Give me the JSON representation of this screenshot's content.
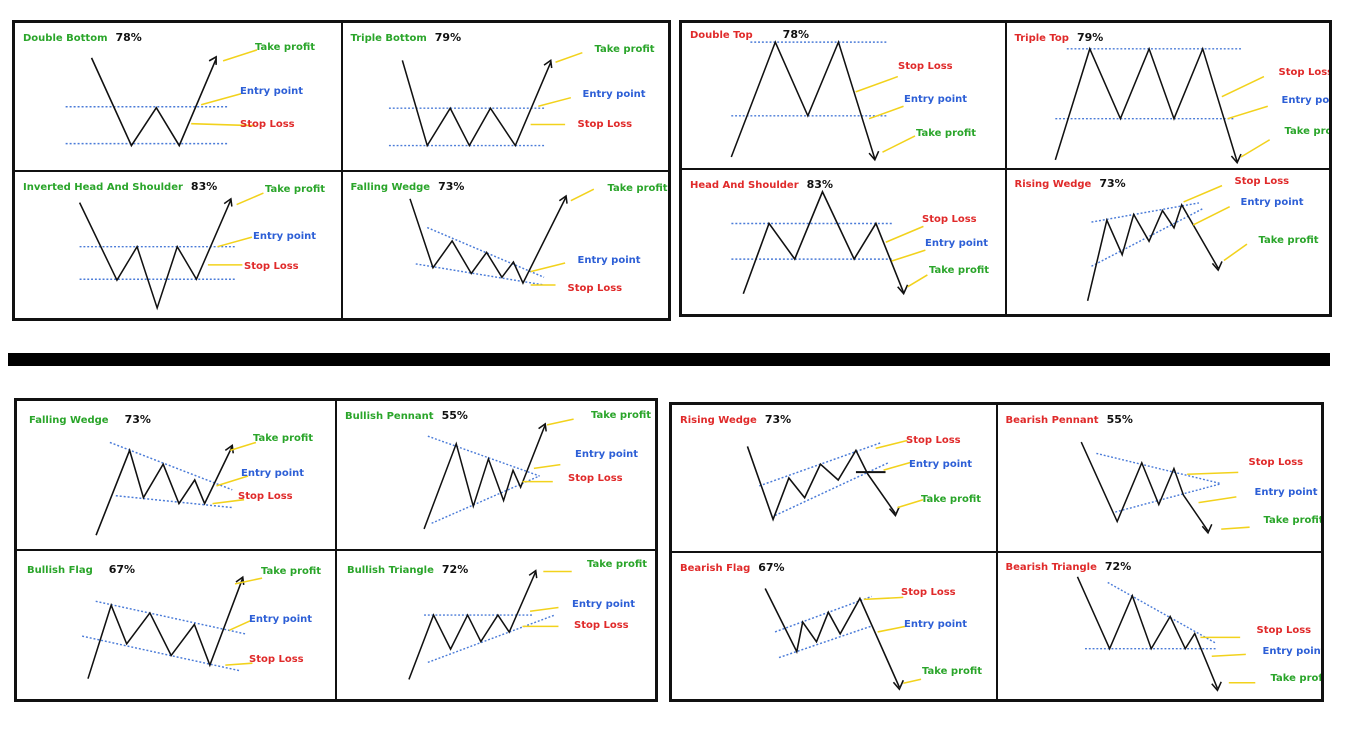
{
  "colors": {
    "bull": "#2aa52a",
    "bear": "#e02a2a",
    "entry": "#2d5fd6",
    "arrow": "#f2d21c",
    "line": "#111111",
    "dotted": "#4a7bd8"
  },
  "labels": {
    "take_profit": "Take profit",
    "entry_point": "Entry point",
    "stop_loss": "Stop Loss"
  },
  "patterns": [
    {
      "title": "Double Bottom",
      "pct": "78%"
    },
    {
      "title": "Triple Bottom",
      "pct": "79%"
    },
    {
      "title": "Inverted Head And Shoulder",
      "pct": "83%"
    },
    {
      "title": "Falling Wedge",
      "pct": "73%"
    },
    {
      "title": "Double Top",
      "pct": "78%"
    },
    {
      "title": "Triple Top",
      "pct": "79%"
    },
    {
      "title": "Head And Shoulder",
      "pct": "83%"
    },
    {
      "title": "Rising Wedge",
      "pct": "73%"
    },
    {
      "title": "Falling Wedge",
      "pct": "73%"
    },
    {
      "title": "Bullish Pennant",
      "pct": "55%"
    },
    {
      "title": "Bullish Flag",
      "pct": "67%"
    },
    {
      "title": "Bullish Triangle",
      "pct": "72%"
    },
    {
      "title": "Rising Wedge",
      "pct": "73%"
    },
    {
      "title": "Bearish Pennant",
      "pct": "55%"
    },
    {
      "title": "Bearish Flag",
      "pct": "67%"
    },
    {
      "title": "Bearish Triangle",
      "pct": "72%"
    }
  ]
}
